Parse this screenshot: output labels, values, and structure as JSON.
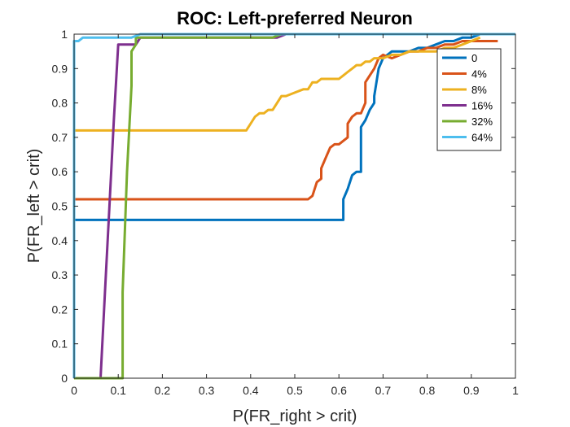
{
  "chart_data": {
    "type": "line",
    "title": "ROC: Left-preferred Neuron",
    "xlabel": "P(FR_right > crit)",
    "ylabel": "P(FR_left > crit)",
    "xlim": [
      0,
      1
    ],
    "ylim": [
      0,
      1
    ],
    "xticks": [
      "0",
      "0.1",
      "0.2",
      "0.3",
      "0.4",
      "0.5",
      "0.6",
      "0.7",
      "0.8",
      "0.9",
      "1"
    ],
    "yticks": [
      "0",
      "0.1",
      "0.2",
      "0.3",
      "0.4",
      "0.5",
      "0.6",
      "0.7",
      "0.8",
      "0.9",
      "1"
    ],
    "grid": false,
    "legend_position": "top-right",
    "series": [
      {
        "name": "0",
        "color": "#0072BD",
        "x": [
          0,
          0.61,
          0.61,
          0.62,
          0.63,
          0.64,
          0.65,
          0.65,
          0.66,
          0.67,
          0.68,
          0.68,
          0.69,
          0.7,
          0.71,
          0.72,
          0.74,
          0.76,
          0.78,
          0.8,
          0.82,
          0.84,
          0.86,
          0.88,
          0.9,
          0.92,
          0.94,
          1.0
        ],
        "y": [
          0.46,
          0.46,
          0.52,
          0.55,
          0.59,
          0.6,
          0.6,
          0.73,
          0.75,
          0.78,
          0.8,
          0.82,
          0.9,
          0.93,
          0.94,
          0.95,
          0.95,
          0.95,
          0.96,
          0.96,
          0.97,
          0.98,
          0.98,
          0.99,
          0.99,
          1.0,
          1.0,
          1.0
        ]
      },
      {
        "name": "4%",
        "color": "#D95319",
        "x": [
          0,
          0.53,
          0.54,
          0.55,
          0.56,
          0.56,
          0.57,
          0.58,
          0.59,
          0.6,
          0.62,
          0.62,
          0.63,
          0.64,
          0.65,
          0.66,
          0.66,
          0.67,
          0.68,
          0.69,
          0.7,
          0.72,
          0.74,
          0.76,
          0.78,
          0.8,
          0.82,
          0.84,
          0.86,
          0.88,
          0.92,
          0.96
        ],
        "y": [
          0.52,
          0.52,
          0.53,
          0.57,
          0.58,
          0.61,
          0.64,
          0.67,
          0.68,
          0.68,
          0.7,
          0.74,
          0.76,
          0.77,
          0.77,
          0.8,
          0.86,
          0.88,
          0.9,
          0.93,
          0.94,
          0.93,
          0.94,
          0.95,
          0.95,
          0.96,
          0.96,
          0.97,
          0.97,
          0.98,
          0.98,
          0.98
        ]
      },
      {
        "name": "8%",
        "color": "#EDB120",
        "x": [
          0,
          0.39,
          0.4,
          0.41,
          0.42,
          0.43,
          0.44,
          0.45,
          0.46,
          0.47,
          0.48,
          0.5,
          0.52,
          0.53,
          0.54,
          0.55,
          0.56,
          0.57,
          0.58,
          0.6,
          0.61,
          0.62,
          0.63,
          0.64,
          0.65,
          0.66,
          0.67,
          0.68,
          0.7,
          0.72,
          0.74,
          0.76,
          0.78,
          0.8,
          0.82,
          0.84,
          0.86,
          0.88,
          0.9,
          0.92
        ],
        "y": [
          0.72,
          0.72,
          0.74,
          0.76,
          0.77,
          0.77,
          0.78,
          0.78,
          0.8,
          0.82,
          0.82,
          0.83,
          0.84,
          0.84,
          0.86,
          0.86,
          0.87,
          0.87,
          0.87,
          0.87,
          0.88,
          0.89,
          0.9,
          0.91,
          0.91,
          0.92,
          0.92,
          0.93,
          0.93,
          0.94,
          0.94,
          0.95,
          0.95,
          0.95,
          0.95,
          0.96,
          0.96,
          0.97,
          0.98,
          0.99
        ]
      },
      {
        "name": "16%",
        "color": "#7E2F8E",
        "x": [
          0.06,
          0.07,
          0.08,
          0.09,
          0.1,
          0.11,
          0.12,
          0.13,
          0.14,
          0.15,
          0.2,
          0.3,
          0.4,
          0.42,
          0.44,
          0.46,
          0.48,
          0.5,
          1.0
        ],
        "y": [
          0,
          0.25,
          0.5,
          0.75,
          0.97,
          0.97,
          0.97,
          0.97,
          0.97,
          0.99,
          0.99,
          0.99,
          0.99,
          0.99,
          0.99,
          0.99,
          1.0,
          1.0,
          1.0
        ]
      },
      {
        "name": "32%",
        "color": "#77AC30",
        "x": [
          0,
          0.11,
          0.11,
          0.12,
          0.13,
          0.13,
          0.14,
          0.14,
          0.16,
          0.2,
          0.3,
          0.4,
          0.45,
          0.47,
          0.5,
          1.0
        ],
        "y": [
          0,
          0,
          0.25,
          0.6,
          0.85,
          0.95,
          0.97,
          0.99,
          0.99,
          0.99,
          0.99,
          0.99,
          0.99,
          1.0,
          1.0,
          1.0
        ],
        "notes": ""
      },
      {
        "name": "64%",
        "color": "#4DBEEE",
        "x": [
          0,
          0,
          0.01,
          0.02,
          0.04,
          0.07,
          0.09,
          0.1,
          0.12,
          0.13,
          0.15,
          0.3,
          0.5,
          1.0
        ],
        "y": [
          0,
          0.98,
          0.98,
          0.99,
          0.99,
          0.99,
          0.99,
          0.99,
          0.99,
          0.99,
          1.0,
          1.0,
          1.0,
          1.0
        ]
      }
    ]
  }
}
